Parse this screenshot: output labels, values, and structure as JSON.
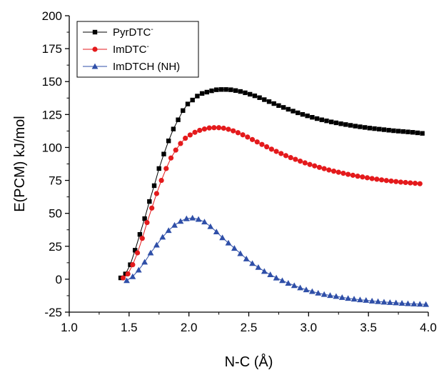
{
  "chart_data": {
    "type": "scatter",
    "title": "",
    "xlabel": "N-C (Å)",
    "ylabel": "E(PCM) kJ/mol",
    "xlim": [
      1.0,
      4.0
    ],
    "ylim": [
      -25,
      200
    ],
    "x_ticks": [
      "1.0",
      "1.5",
      "2.0",
      "2.5",
      "3.0",
      "3.5",
      "4.0"
    ],
    "y_ticks": [
      "-25",
      "0",
      "25",
      "50",
      "75",
      "100",
      "125",
      "150",
      "175",
      "200"
    ],
    "x_tick_values": [
      1.0,
      1.5,
      2.0,
      2.5,
      3.0,
      3.5,
      4.0
    ],
    "y_tick_values": [
      -25,
      0,
      25,
      50,
      75,
      100,
      125,
      150,
      175,
      200
    ],
    "grid": false,
    "legend_position": "top-left",
    "series": [
      {
        "name": "PyrDTC-",
        "label_main": "PyrDTC",
        "label_sup": "-",
        "color": "#000000",
        "marker": "square",
        "x": [
          1.43,
          1.47,
          1.51,
          1.55,
          1.59,
          1.63,
          1.67,
          1.71,
          1.75,
          1.79,
          1.83,
          1.87,
          1.91,
          1.95,
          1.99,
          2.03,
          2.07,
          2.11,
          2.15,
          2.19,
          2.23,
          2.27,
          2.31,
          2.35,
          2.39,
          2.43,
          2.47,
          2.51,
          2.55,
          2.59,
          2.63,
          2.67,
          2.71,
          2.75,
          2.79,
          2.83,
          2.87,
          2.91,
          2.95,
          2.99,
          3.03,
          3.07,
          3.11,
          3.15,
          3.19,
          3.23,
          3.27,
          3.31,
          3.35,
          3.39,
          3.43,
          3.47,
          3.51,
          3.55,
          3.59,
          3.63,
          3.67,
          3.71,
          3.75,
          3.79,
          3.83,
          3.87,
          3.91,
          3.95
        ],
        "y": [
          1,
          4,
          11,
          22,
          34,
          46,
          59,
          71,
          84,
          95,
          105,
          114,
          121,
          128,
          133,
          136,
          139,
          141,
          142,
          143,
          143.8,
          144,
          144,
          143.8,
          143.2,
          142.5,
          141.5,
          140.4,
          139.2,
          137.8,
          136.3,
          134.8,
          133.3,
          131.8,
          130.4,
          129,
          127.6,
          126.3,
          125.1,
          124,
          122.9,
          121.9,
          121,
          120.2,
          119.4,
          118.7,
          118,
          117.4,
          116.8,
          116.2,
          115.7,
          115.2,
          114.7,
          114.3,
          113.9,
          113.5,
          113.1,
          112.7,
          112.4,
          112.1,
          111.8,
          111.5,
          111.1,
          110.7
        ]
      },
      {
        "name": "ImDTC-",
        "label_main": "ImDTC",
        "label_sup": "-",
        "color": "#e41a1c",
        "marker": "circle",
        "x": [
          1.45,
          1.49,
          1.53,
          1.57,
          1.61,
          1.65,
          1.69,
          1.73,
          1.77,
          1.81,
          1.85,
          1.89,
          1.93,
          1.97,
          2.01,
          2.05,
          2.09,
          2.13,
          2.17,
          2.21,
          2.25,
          2.29,
          2.33,
          2.37,
          2.41,
          2.45,
          2.49,
          2.53,
          2.57,
          2.61,
          2.65,
          2.69,
          2.73,
          2.77,
          2.81,
          2.85,
          2.89,
          2.93,
          2.97,
          3.01,
          3.05,
          3.09,
          3.13,
          3.17,
          3.21,
          3.25,
          3.29,
          3.33,
          3.37,
          3.41,
          3.45,
          3.49,
          3.53,
          3.57,
          3.61,
          3.65,
          3.69,
          3.73,
          3.77,
          3.81,
          3.85,
          3.89,
          3.93
        ],
        "y": [
          1,
          4,
          11,
          20,
          31,
          43,
          54,
          65,
          75,
          84,
          92,
          98,
          103,
          107,
          109.5,
          111.5,
          113,
          114,
          114.8,
          115,
          115,
          114.6,
          113.8,
          112.6,
          111.2,
          109.6,
          107.9,
          106,
          104.2,
          102.3,
          100.5,
          98.7,
          97,
          95.4,
          93.8,
          92.3,
          91,
          89.6,
          88.3,
          87.1,
          86,
          84.9,
          83.9,
          82.9,
          82,
          81.2,
          80.4,
          79.6,
          78.9,
          78.2,
          77.6,
          77,
          76.4,
          75.9,
          75.4,
          74.9,
          74.5,
          74.1,
          73.7,
          73.4,
          73.1,
          72.8,
          72.5
        ]
      },
      {
        "name": "ImDTCH (NH)",
        "label_main": "ImDTCH (NH)",
        "label_sup": "",
        "color": "#2f4fa8",
        "marker": "triangle",
        "x": [
          1.48,
          1.53,
          1.58,
          1.63,
          1.68,
          1.73,
          1.78,
          1.83,
          1.88,
          1.93,
          1.98,
          2.03,
          2.08,
          2.13,
          2.18,
          2.23,
          2.28,
          2.33,
          2.38,
          2.43,
          2.48,
          2.53,
          2.58,
          2.63,
          2.68,
          2.73,
          2.78,
          2.83,
          2.88,
          2.93,
          2.98,
          3.03,
          3.08,
          3.13,
          3.18,
          3.23,
          3.28,
          3.33,
          3.38,
          3.43,
          3.48,
          3.53,
          3.58,
          3.63,
          3.68,
          3.73,
          3.78,
          3.83,
          3.88,
          3.93,
          3.98
        ],
        "y": [
          -1,
          2,
          7,
          13,
          20,
          26,
          32,
          37,
          41,
          44,
          46,
          46.5,
          45.5,
          43.5,
          40,
          36,
          31.5,
          27.5,
          23.5,
          19.5,
          15.5,
          12,
          9,
          6,
          3.5,
          1,
          -1,
          -3,
          -4.8,
          -6.5,
          -8,
          -9.3,
          -10.5,
          -11.5,
          -12.3,
          -13,
          -13.8,
          -14.5,
          -15,
          -15.6,
          -16,
          -16.5,
          -16.9,
          -17.3,
          -17.6,
          -17.9,
          -18.2,
          -18.5,
          -18.7,
          -18.9,
          -19.1
        ]
      }
    ]
  }
}
